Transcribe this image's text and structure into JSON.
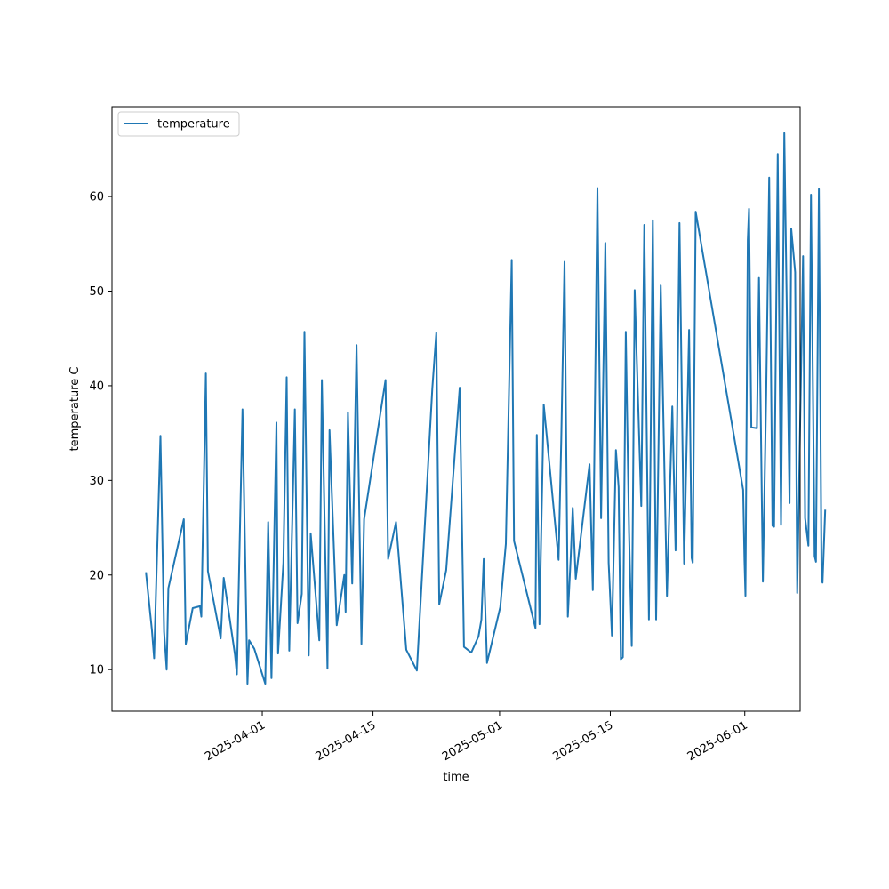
{
  "chart_data": {
    "type": "line",
    "xlabel": "time",
    "ylabel": "temperature C",
    "x_type": "date",
    "xlim": [
      "2025-03-13",
      "2025-06-08"
    ],
    "ylim": [
      5.6,
      69.5
    ],
    "x_ticks": [
      "2025-04-01",
      "2025-04-15",
      "2025-05-01",
      "2025-05-15",
      "2025-06-01"
    ],
    "y_ticks": [
      10,
      20,
      30,
      40,
      50,
      60
    ],
    "grid": false,
    "legend": {
      "position": "top-left",
      "entries": [
        "temperature"
      ]
    },
    "series": [
      {
        "name": "temperature",
        "color": "#1f77b4",
        "points": [
          [
            "2025-03-17 07:00",
            20.3
          ],
          [
            "2025-03-18 01:00",
            14.2
          ],
          [
            "2025-03-18 08:00",
            11.2
          ],
          [
            "2025-03-19 03:00",
            34.7
          ],
          [
            "2025-03-19 14:00",
            14.0
          ],
          [
            "2025-03-19 22:00",
            10.0
          ],
          [
            "2025-03-20 03:00",
            18.6
          ],
          [
            "2025-03-22 02:00",
            25.9
          ],
          [
            "2025-03-22 08:00",
            12.7
          ],
          [
            "2025-03-23 05:00",
            16.5
          ],
          [
            "2025-03-24 03:00",
            16.7
          ],
          [
            "2025-03-24 07:00",
            15.6
          ],
          [
            "2025-03-24 21:00",
            41.3
          ],
          [
            "2025-03-25 03:00",
            20.4
          ],
          [
            "2025-03-26 18:00",
            13.3
          ],
          [
            "2025-03-27 03:00",
            19.7
          ],
          [
            "2025-03-28 13:00",
            11.6
          ],
          [
            "2025-03-28 19:00",
            9.5
          ],
          [
            "2025-03-29 12:00",
            37.5
          ],
          [
            "2025-03-30 03:00",
            8.5
          ],
          [
            "2025-03-30 08:00",
            13.1
          ],
          [
            "2025-03-31 00:00",
            12.2
          ],
          [
            "2025-04-01 09:00",
            8.5
          ],
          [
            "2025-04-01 18:00",
            25.6
          ],
          [
            "2025-04-02 04:00",
            9.1
          ],
          [
            "2025-04-02 19:00",
            36.1
          ],
          [
            "2025-04-03 00:00",
            11.7
          ],
          [
            "2025-04-03 16:00",
            21.3
          ],
          [
            "2025-04-04 02:00",
            40.9
          ],
          [
            "2025-04-04 10:00",
            12.0
          ],
          [
            "2025-04-05 03:00",
            37.5
          ],
          [
            "2025-04-05 11:00",
            14.9
          ],
          [
            "2025-04-06 00:00",
            18.0
          ],
          [
            "2025-04-06 08:00",
            45.7
          ],
          [
            "2025-04-06 21:00",
            11.5
          ],
          [
            "2025-04-07 03:00",
            24.4
          ],
          [
            "2025-04-08 05:00",
            13.1
          ],
          [
            "2025-04-08 13:00",
            40.6
          ],
          [
            "2025-04-09 06:00",
            10.1
          ],
          [
            "2025-04-09 12:00",
            35.3
          ],
          [
            "2025-04-10 10:00",
            14.7
          ],
          [
            "2025-04-11 09:00",
            20.0
          ],
          [
            "2025-04-11 13:00",
            16.1
          ],
          [
            "2025-04-11 20:00",
            37.2
          ],
          [
            "2025-04-12 09:00",
            19.1
          ],
          [
            "2025-04-12 22:00",
            44.3
          ],
          [
            "2025-04-13 13:00",
            12.7
          ],
          [
            "2025-04-13 21:00",
            25.9
          ],
          [
            "2025-04-16 14:00",
            40.6
          ],
          [
            "2025-04-16 22:00",
            21.7
          ],
          [
            "2025-04-17 22:00",
            25.6
          ],
          [
            "2025-04-19 05:00",
            12.1
          ],
          [
            "2025-04-20 13:00",
            9.9
          ],
          [
            "2025-04-22 12:00",
            39.7
          ],
          [
            "2025-04-23 00:00",
            45.6
          ],
          [
            "2025-04-23 09:00",
            16.9
          ],
          [
            "2025-04-24 06:00",
            20.5
          ],
          [
            "2025-04-25 23:00",
            39.8
          ],
          [
            "2025-04-26 12:00",
            12.4
          ],
          [
            "2025-04-27 10:00",
            11.8
          ],
          [
            "2025-04-28 08:00",
            13.5
          ],
          [
            "2025-04-28 17:00",
            15.3
          ],
          [
            "2025-04-29 00:00",
            21.7
          ],
          [
            "2025-04-29 10:00",
            10.7
          ],
          [
            "2025-05-01 02:00",
            16.6
          ],
          [
            "2025-05-01 19:00",
            23.3
          ],
          [
            "2025-05-02 13:00",
            53.3
          ],
          [
            "2025-05-02 20:00",
            23.6
          ],
          [
            "2025-05-05 13:00",
            14.4
          ],
          [
            "2025-05-05 17:00",
            34.8
          ],
          [
            "2025-05-06 01:00",
            14.8
          ],
          [
            "2025-05-06 14:00",
            38.0
          ],
          [
            "2025-05-08 11:00",
            21.6
          ],
          [
            "2025-05-08 19:00",
            34.2
          ],
          [
            "2025-05-09 05:00",
            53.1
          ],
          [
            "2025-05-09 15:00",
            15.6
          ],
          [
            "2025-05-10 00:00",
            22.0
          ],
          [
            "2025-05-10 06:00",
            27.1
          ],
          [
            "2025-05-10 15:00",
            19.6
          ],
          [
            "2025-05-12 09:00",
            31.7
          ],
          [
            "2025-05-12 19:00",
            18.4
          ],
          [
            "2025-05-13 09:00",
            60.9
          ],
          [
            "2025-05-13 20:00",
            26.0
          ],
          [
            "2025-05-14 09:00",
            55.1
          ],
          [
            "2025-05-14 19:00",
            21.3
          ],
          [
            "2025-05-15 05:00",
            13.6
          ],
          [
            "2025-05-15 17:00",
            33.2
          ],
          [
            "2025-05-16 01:00",
            29.3
          ],
          [
            "2025-05-16 08:00",
            11.1
          ],
          [
            "2025-05-16 14:00",
            11.3
          ],
          [
            "2025-05-16 23:00",
            45.7
          ],
          [
            "2025-05-17 09:00",
            24.4
          ],
          [
            "2025-05-17 17:00",
            12.5
          ],
          [
            "2025-05-18 02:00",
            50.1
          ],
          [
            "2025-05-18 22:00",
            27.3
          ],
          [
            "2025-05-19 07:00",
            57.0
          ],
          [
            "2025-05-19 21:00",
            15.3
          ],
          [
            "2025-05-20 09:00",
            57.5
          ],
          [
            "2025-05-20 19:00",
            15.3
          ],
          [
            "2025-05-21 09:00",
            50.6
          ],
          [
            "2025-05-22 04:00",
            17.8
          ],
          [
            "2025-05-22 20:00",
            37.8
          ],
          [
            "2025-05-23 06:00",
            22.6
          ],
          [
            "2025-05-23 18:00",
            57.2
          ],
          [
            "2025-05-24 08:00",
            21.2
          ],
          [
            "2025-05-24 23:00",
            45.9
          ],
          [
            "2025-05-25 07:00",
            21.8
          ],
          [
            "2025-05-25 10:00",
            21.3
          ],
          [
            "2025-05-25 19:00",
            58.4
          ],
          [
            "2025-05-31 19:00",
            29.0
          ],
          [
            "2025-05-31 23:00",
            21.5
          ],
          [
            "2025-06-01 02:00",
            17.8
          ],
          [
            "2025-06-01 09:00",
            55.4
          ],
          [
            "2025-06-01 13:00",
            58.7
          ],
          [
            "2025-06-01 20:00",
            35.6
          ],
          [
            "2025-06-02 13:00",
            35.5
          ],
          [
            "2025-06-02 19:00",
            51.4
          ],
          [
            "2025-06-03 07:00",
            19.3
          ],
          [
            "2025-06-03 17:00",
            39.0
          ],
          [
            "2025-06-04 02:00",
            62.0
          ],
          [
            "2025-06-04 12:00",
            25.2
          ],
          [
            "2025-06-04 17:00",
            25.1
          ],
          [
            "2025-06-05 04:00",
            64.5
          ],
          [
            "2025-06-05 14:00",
            25.3
          ],
          [
            "2025-06-06 00:00",
            66.7
          ],
          [
            "2025-06-06 16:00",
            27.6
          ],
          [
            "2025-06-06 21:00",
            56.6
          ],
          [
            "2025-06-07 09:00",
            52.0
          ],
          [
            "2025-06-07 15:00",
            18.1
          ],
          [
            "2025-06-08 09:00",
            53.7
          ],
          [
            "2025-06-08 15:00",
            26.0
          ],
          [
            "2025-06-09 01:00",
            23.1
          ],
          [
            "2025-06-09 09:00",
            60.2
          ],
          [
            "2025-06-09 20:00",
            22.0
          ],
          [
            "2025-06-10 00:00",
            21.4
          ],
          [
            "2025-06-10 09:00",
            60.8
          ],
          [
            "2025-06-10 17:00",
            19.4
          ],
          [
            "2025-06-10 20:00",
            19.2
          ],
          [
            "2025-06-11 04:00",
            26.9
          ]
        ]
      }
    ]
  }
}
